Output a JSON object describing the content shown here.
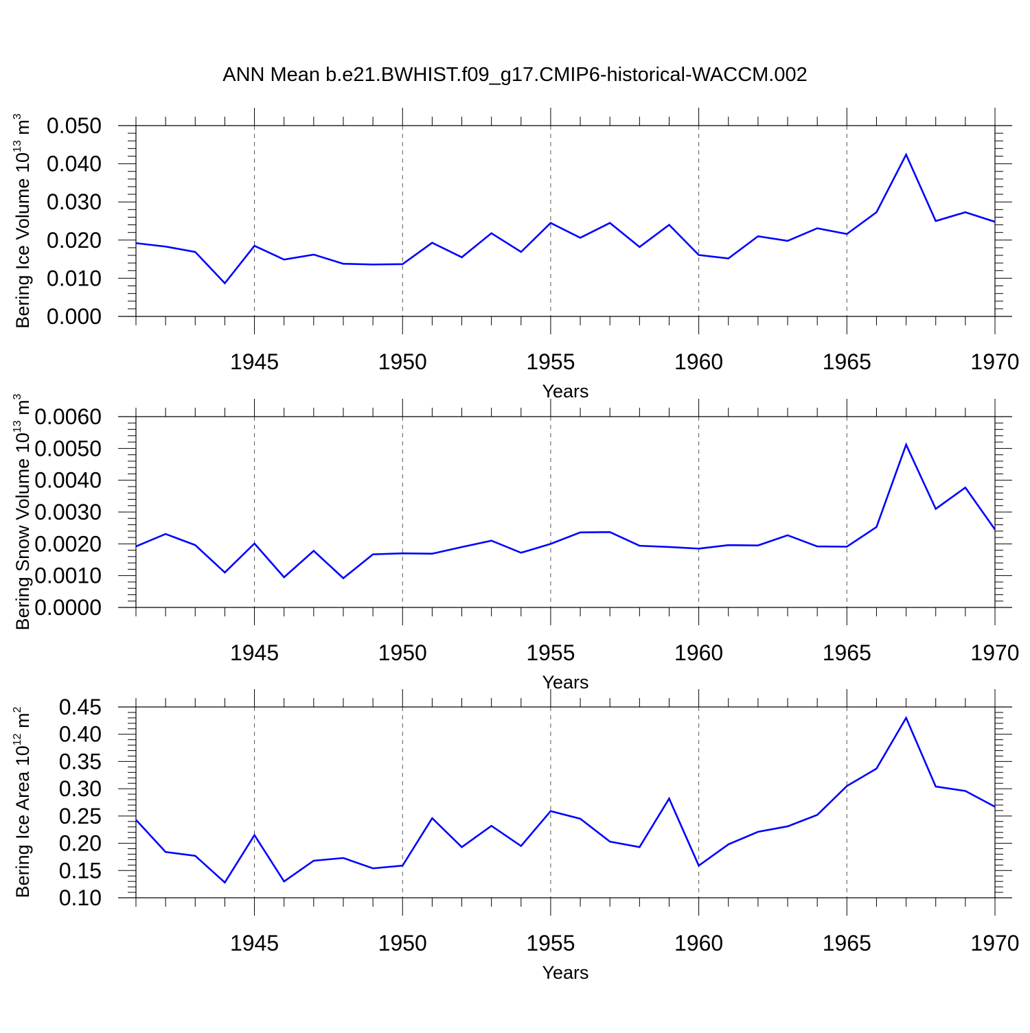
{
  "title": "ANN Mean b.e21.BWHIST.f09_g17.CMIP6-historical-WACCM.002",
  "colors": {
    "line": "#0000ff",
    "axis": "#000000",
    "grid": "#555555"
  },
  "chart_data": [
    {
      "type": "line",
      "title": "ANN Mean b.e21.BWHIST.f09_g17.CMIP6-historical-WACCM.002",
      "xlabel": "Years",
      "ylabel": {
        "text": "Bering Ice Volume 10",
        "sup1": "13",
        "unit": " m",
        "sup2": "3"
      },
      "xlim": [
        1941,
        1970
      ],
      "ylim": [
        0,
        0.05
      ],
      "grid": "vertical dashed at major x ticks",
      "x_ticks": [
        "1945",
        "1950",
        "1955",
        "1960",
        "1965",
        "1970"
      ],
      "y_ticks": [
        "0.000",
        "0.010",
        "0.020",
        "0.030",
        "0.040",
        "0.050"
      ],
      "x": [
        1941,
        1942,
        1943,
        1944,
        1945,
        1946,
        1947,
        1948,
        1949,
        1950,
        1951,
        1952,
        1953,
        1954,
        1955,
        1956,
        1957,
        1958,
        1959,
        1960,
        1961,
        1962,
        1963,
        1964,
        1965,
        1966,
        1967,
        1968,
        1969,
        1970
      ],
      "series": [
        {
          "values": [
            0.0192,
            0.0183,
            0.0169,
            0.0087,
            0.0185,
            0.0149,
            0.0162,
            0.0138,
            0.0136,
            0.0137,
            0.0193,
            0.0155,
            0.0218,
            0.0169,
            0.0245,
            0.0206,
            0.0245,
            0.0182,
            0.024,
            0.0161,
            0.0152,
            0.021,
            0.0198,
            0.0231,
            0.0216,
            0.0273,
            0.0424,
            0.025,
            0.0273,
            0.0248
          ]
        }
      ]
    },
    {
      "type": "line",
      "xlabel": "Years",
      "ylabel": {
        "text": "Bering Snow Volume 10",
        "sup1": "13",
        "unit": " m",
        "sup2": "3"
      },
      "xlim": [
        1941,
        1970
      ],
      "ylim": [
        0,
        0.006
      ],
      "grid": "vertical dashed at major x ticks",
      "x_ticks": [
        "1945",
        "1950",
        "1955",
        "1960",
        "1965",
        "1970"
      ],
      "y_ticks": [
        "0.0000",
        "0.0010",
        "0.0020",
        "0.0030",
        "0.0040",
        "0.0050",
        "0.0060"
      ],
      "x": [
        1941,
        1942,
        1943,
        1944,
        1945,
        1946,
        1947,
        1948,
        1949,
        1950,
        1951,
        1952,
        1953,
        1954,
        1955,
        1956,
        1957,
        1958,
        1959,
        1960,
        1961,
        1962,
        1963,
        1964,
        1965,
        1966,
        1967,
        1968,
        1969,
        1970
      ],
      "series": [
        {
          "values": [
            0.00192,
            0.00231,
            0.00196,
            0.0011,
            0.00201,
            0.00095,
            0.00178,
            0.00092,
            0.00167,
            0.0017,
            0.00169,
            0.0019,
            0.0021,
            0.00172,
            0.002,
            0.00236,
            0.00237,
            0.00194,
            0.0019,
            0.00185,
            0.00196,
            0.00195,
            0.00227,
            0.00192,
            0.00191,
            0.00253,
            0.00512,
            0.0031,
            0.00377,
            0.00245
          ]
        }
      ]
    },
    {
      "type": "line",
      "xlabel": "Years",
      "ylabel": {
        "text": "Bering Ice Area 10",
        "sup1": "12",
        "unit": " m",
        "sup2": "2"
      },
      "xlim": [
        1941,
        1970
      ],
      "ylim": [
        0.1,
        0.45
      ],
      "grid": "vertical dashed at major x ticks",
      "x_ticks": [
        "1945",
        "1950",
        "1955",
        "1960",
        "1965",
        "1970"
      ],
      "y_ticks": [
        "0.10",
        "0.15",
        "0.20",
        "0.25",
        "0.30",
        "0.35",
        "0.40",
        "0.45"
      ],
      "x": [
        1941,
        1942,
        1943,
        1944,
        1945,
        1946,
        1947,
        1948,
        1949,
        1950,
        1951,
        1952,
        1953,
        1954,
        1955,
        1956,
        1957,
        1958,
        1959,
        1960,
        1961,
        1962,
        1963,
        1964,
        1965,
        1966,
        1967,
        1968,
        1969,
        1970
      ],
      "series": [
        {
          "values": [
            0.243,
            0.184,
            0.177,
            0.128,
            0.215,
            0.13,
            0.168,
            0.173,
            0.154,
            0.159,
            0.246,
            0.193,
            0.232,
            0.195,
            0.259,
            0.245,
            0.203,
            0.193,
            0.282,
            0.159,
            0.198,
            0.221,
            0.231,
            0.252,
            0.305,
            0.337,
            0.43,
            0.304,
            0.296,
            0.267
          ]
        }
      ]
    }
  ]
}
